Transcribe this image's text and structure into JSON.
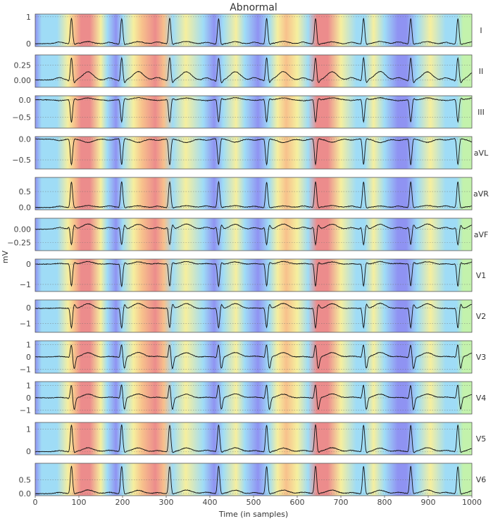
{
  "chart_data": {
    "type": "line",
    "title": "Abnormal",
    "xlabel": "Time (in samples)",
    "ylabel": "mV",
    "xlim": [
      0,
      1000
    ],
    "xticks": [
      0,
      100,
      200,
      300,
      400,
      500,
      600,
      700,
      800,
      900,
      1000
    ],
    "xtick_labels": [
      "0",
      "100",
      "200",
      "300",
      "400",
      "500",
      "600",
      "700",
      "800",
      "900",
      "1000"
    ],
    "beats": [
      83,
      198,
      308,
      420,
      530,
      642,
      752,
      860,
      968
    ],
    "attribution_map": {
      "description": "saliency heatmap background shared by all leads",
      "stops": [
        [
          0,
          "blue"
        ],
        [
          15,
          "cyan"
        ],
        [
          50,
          "cyan"
        ],
        [
          75,
          "yellow"
        ],
        [
          90,
          "orange"
        ],
        [
          105,
          "red"
        ],
        [
          125,
          "red"
        ],
        [
          150,
          "yellow"
        ],
        [
          165,
          "cyan"
        ],
        [
          185,
          "blue"
        ],
        [
          200,
          "cyan"
        ],
        [
          225,
          "yellow"
        ],
        [
          245,
          "orange"
        ],
        [
          275,
          "red"
        ],
        [
          295,
          "orange"
        ],
        [
          315,
          "cyan"
        ],
        [
          345,
          "yellow"
        ],
        [
          385,
          "cyan"
        ],
        [
          410,
          "blue"
        ],
        [
          430,
          "cyan"
        ],
        [
          460,
          "yellow"
        ],
        [
          480,
          "cyan"
        ],
        [
          510,
          "blue"
        ],
        [
          535,
          "cyan"
        ],
        [
          555,
          "yellow"
        ],
        [
          575,
          "orange"
        ],
        [
          600,
          "yellow"
        ],
        [
          625,
          "cyan"
        ],
        [
          645,
          "red"
        ],
        [
          670,
          "red"
        ],
        [
          700,
          "yellow"
        ],
        [
          735,
          "cyan"
        ],
        [
          755,
          "cyan"
        ],
        [
          775,
          "yellow"
        ],
        [
          800,
          "cyan"
        ],
        [
          830,
          "blue"
        ],
        [
          850,
          "blue"
        ],
        [
          875,
          "cyan"
        ],
        [
          905,
          "yellow"
        ],
        [
          940,
          "cyan"
        ],
        [
          965,
          "cyan"
        ],
        [
          980,
          "green"
        ],
        [
          1000,
          "green"
        ]
      ]
    },
    "leads": [
      {
        "name": "I",
        "ylim": [
          -0.1,
          1.1
        ],
        "yticks": [
          0,
          1
        ],
        "ytick_labels": [
          "0",
          "1"
        ],
        "baseline": 0.0,
        "p": 0.06,
        "q": -0.05,
        "r": 0.95,
        "s": -0.05,
        "t": 0.08
      },
      {
        "name": "II",
        "ylim": [
          -0.12,
          0.42
        ],
        "yticks": [
          0,
          0.25
        ],
        "ytick_labels": [
          "0.00",
          "0.25"
        ],
        "baseline": 0.0,
        "p": 0.04,
        "q": -0.04,
        "r": 0.38,
        "s": -0.06,
        "t": 0.14
      },
      {
        "name": "III",
        "ylim": [
          -0.82,
          0.12
        ],
        "yticks": [
          -0.5,
          0
        ],
        "ytick_labels": [
          "−0.5",
          "0.0"
        ],
        "baseline": 0.0,
        "p": -0.02,
        "q": 0.04,
        "r": -0.65,
        "s": 0.05,
        "t": 0.06
      },
      {
        "name": "aVL",
        "ylim": [
          -0.72,
          0.06
        ],
        "yticks": [
          -0.5,
          0
        ],
        "ytick_labels": [
          "−0.5",
          "0.0"
        ],
        "baseline": 0.0,
        "p": -0.03,
        "q": 0.03,
        "r": -0.62,
        "s": 0.02,
        "t": -0.08
      },
      {
        "name": "aVR",
        "ylim": [
          -0.08,
          0.95
        ],
        "yticks": [
          0,
          0.5
        ],
        "ytick_labels": [
          "0.0",
          "0.5"
        ],
        "baseline": 0.0,
        "p": 0.04,
        "q": -0.04,
        "r": 0.82,
        "s": -0.03,
        "t": 0.05
      },
      {
        "name": "aVF",
        "ylim": [
          -0.4,
          0.2
        ],
        "yticks": [
          -0.25,
          0
        ],
        "ytick_labels": [
          "−0.25",
          "0.00"
        ],
        "baseline": 0.0,
        "p": 0.03,
        "q": 0.05,
        "r": -0.3,
        "s": 0.08,
        "t": 0.09
      },
      {
        "name": "V1",
        "ylim": [
          -1.35,
          0.25
        ],
        "yticks": [
          -1,
          0
        ],
        "ytick_labels": [
          "−1",
          "0"
        ],
        "baseline": 0.0,
        "p": 0.03,
        "q": 0.06,
        "r": -1.1,
        "s": 0.1,
        "t": 0.12
      },
      {
        "name": "V2",
        "ylim": [
          -1.55,
          0.5
        ],
        "yticks": [
          -1,
          0
        ],
        "ytick_labels": [
          "−1",
          "0"
        ],
        "baseline": -0.05,
        "p": 0.03,
        "q": 0.08,
        "r": -1.25,
        "s": 0.3,
        "t": 0.32
      },
      {
        "name": "V3",
        "ylim": [
          -1.3,
          1.3
        ],
        "yticks": [
          -1,
          0,
          1
        ],
        "ytick_labels": [
          "−1",
          "0",
          "1"
        ],
        "baseline": 0.0,
        "p": 0.05,
        "q": -0.1,
        "r": 1.05,
        "s": -1.0,
        "t": 0.35
      },
      {
        "name": "V4",
        "ylim": [
          -1.3,
          1.3
        ],
        "yticks": [
          -1,
          0,
          1
        ],
        "ytick_labels": [
          "−1",
          "0",
          "1"
        ],
        "baseline": 0.0,
        "p": 0.05,
        "q": -0.1,
        "r": 1.1,
        "s": -1.0,
        "t": 0.3
      },
      {
        "name": "V5",
        "ylim": [
          -0.15,
          1.3
        ],
        "yticks": [
          0,
          1
        ],
        "ytick_labels": [
          "0",
          "1"
        ],
        "baseline": 0.0,
        "p": 0.05,
        "q": -0.06,
        "r": 1.2,
        "s": -0.08,
        "t": 0.16
      },
      {
        "name": "V6",
        "ylim": [
          -0.08,
          1.1
        ],
        "yticks": [
          0,
          0.5
        ],
        "ytick_labels": [
          "0.0",
          "0.5"
        ],
        "baseline": 0.0,
        "p": 0.04,
        "q": -0.04,
        "r": 1.0,
        "s": -0.04,
        "t": 0.12
      }
    ]
  }
}
